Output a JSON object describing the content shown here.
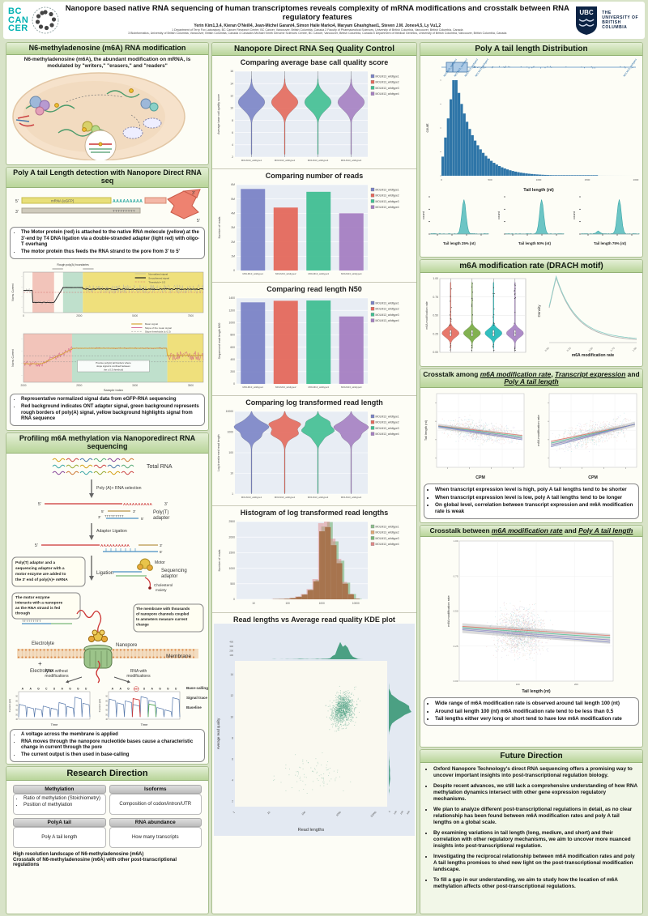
{
  "header": {
    "logo_bc": [
      "BC",
      "CAN",
      "CER"
    ],
    "title": "Nanopore based native RNA sequencing of human transcriptomes reveals complexity of mRNA modifications and crosstalk between RNA regulatory features",
    "authors": "Yerin Kim1,3,4, Kieran O'Neill4, Jean-Michel Garant4, Simon Haile Marko4, Maryam Ghashghaei1, Steven J.M. Jones4,5, Ly Vu1,2",
    "affil1": "1 Department of Terry Fox Laboratory, BC Cancer Research Centre, BC Cancer, Vancouver, British Columbia, Canada 2 Faculty of Pharmaceutical Sciences, University of British Columbia, Vancouver, British Columbia, Canada",
    "affil2": "3 Bioinformatics, University of British Columbia, Vancouver, British Columbia, Canada 4 Canada's Michael Smith Genome Sciences Centre, BC Cancer, Vancouver, British Columbia, Canada 5 Department of Medical Genetics, University of British Columbia, Vancouver, British Columbia, Canada",
    "ubc_abbr": "UBC",
    "ubc_lines": [
      "THE",
      "UNIVERSITY OF",
      "BRITISH",
      "COLUMBIA"
    ]
  },
  "samples": [
    "MOLM13_wildtype1",
    "MOLM13_wildtype2",
    "MOLM13_wildtype3",
    "MOLM13_wildtype4"
  ],
  "colors": {
    "s1": "#7b84c6",
    "s2": "#e4695c",
    "s3": "#41bf92",
    "s4": "#a57fc2",
    "accent_green": "#b9d59a",
    "polya_blue": "#2e75a8",
    "teal": "#63c3c3",
    "kde_green": "#4ba083"
  },
  "left": {
    "s1": {
      "title": "N6-methyladenosine (m6A) RNA modification",
      "desc": "N6-methyladenosine (m6A), the abundant modification on mRNA, is modulated by \"writers,\" \"erasers,\" and \"readers\""
    },
    "s2": {
      "title": "Poly A tail Length detection with Nanopore Direct RNA seq",
      "diagram": {
        "five": "5'",
        "three": "3'",
        "mrna": "mRNA (eGFP)",
        "polya": "AAAAAAAAA",
        "polyt": "TTTTTTTTT",
        "three2": "3'",
        "five2": "5'"
      },
      "bullets1": [
        "The Motor protein (red) is attached to the native RNA molecule (yellow) at the 3'-end by T4 DNA ligation via a double-stranded adapter (light red) with oligo-T overhang",
        "The motor protein thus feeds the RNA strand to the pore from 3' to 5'"
      ],
      "bullets2": [
        "Representative normalized signal data from eGFP-RNA sequencing",
        "Red background indicates ONT adapter signal, green background represents rough borders of poly(A) signal, yellow background highlights signal from RNA sequence"
      ]
    },
    "s3": {
      "title": "Profiling m6A methylation via Nanoporedirect RNA sequencing",
      "steps": {
        "total_rna": "Total RNA",
        "sel": "Poly (A)+ RNA selection",
        "five": "5'",
        "three": "3'",
        "polya": "AAAAAAAAAA",
        "polyt": "TTTTTTTTT",
        "polyt_adapter1": "Poly(T)",
        "polyt_adapter2": "adapter",
        "adaptor_ligation": "Adaptor Ligation",
        "ligation": "Ligation",
        "motor": "Motor",
        "seq_adapter1": "Sequencing",
        "seq_adapter2": "adaptor",
        "chol1": "Cholesterol",
        "chol2": "moiety",
        "callout1_lines": [
          "Poly(T) adaptor and a",
          "sequencing adaptor with a",
          "motor enzyme are added to",
          "the 3' end of poly(A)+ mRNA"
        ],
        "callout2_lines": [
          "The motor enzyme",
          "interacts with a nanopore",
          "as the RNA strand is fed",
          "through"
        ],
        "callout3_lines": [
          "The membrane with thousands",
          "of nanopore channels coupled",
          "to ammeters measure current",
          "change"
        ],
        "electrolyte": "Electrolyte",
        "minus": "−",
        "plus": "+",
        "nanopore": "Nanopore",
        "membrane": "Membrane",
        "rna_wo1": "RNA without",
        "rna_wo2": "modifications",
        "rna_w1": "RNA with",
        "rna_w2": "modifications"
      },
      "bullets": [
        "A voltage across the membrane is applied",
        "RNA moves through the nanopore nucleotide bases cause a characteristic change in current through the pore",
        "The current output is then used in base-calling"
      ]
    },
    "s4": {
      "title": "Research Direction",
      "boxes": [
        {
          "h": "Methylation",
          "items": [
            "Ratio of methylation (Stoichiometry)",
            "Position of methylation"
          ]
        },
        {
          "h": "Isoforms",
          "items": [
            "Composition of codon/intron/UTR"
          ]
        },
        {
          "h": "PolyA tail",
          "items": [
            "Poly A tail length"
          ]
        },
        {
          "h": "RNA abundance",
          "items": [
            "How many transcripts"
          ]
        }
      ],
      "bullets": [
        "High resolution landscape of N6-methyladenosine (m6A)",
        "Crosstalk of N6-methyladenosine (m6A) with other post-transcriptional regulations"
      ]
    }
  },
  "middle": {
    "title": "Nanopore Direct RNA Seq Quality Control"
  },
  "right": {
    "s1": {
      "title": "Poly A tail length Distribution"
    },
    "s2": {
      "title": "m6A modification rate (DRACH motif)"
    },
    "s3": {
      "parts": [
        "Crosstalk among ",
        "m6A modification rate",
        ", ",
        "Transcript expression",
        " and ",
        "Poly A tail length"
      ],
      "bullets": [
        "When transcript expression level is high, poly A tail lengths tend to be shorter",
        "When transcript expression level is low, poly A tail lengths tend to be longer",
        "On global level, correlation between transcript expression and m6A modification rate is weak"
      ]
    },
    "s4": {
      "parts": [
        "Crosstalk between ",
        "m6A modification rate",
        " and ",
        "Poly A tail length"
      ],
      "bullets": [
        "Wide range of m6A modification rate is observed around tail length 100 (nt)",
        "Around tail length 100 (nt) m6A modification rate tend to be less than 0.5",
        "Tail lengths either very long or short tend to have low m6A modification rate"
      ]
    },
    "s5": {
      "title": "Future Direction",
      "bullets": [
        "Oxford Nanopore Technology's direct RNA sequencing offers a promising way to uncover important insights into post-transcriptional regulation biology.",
        "Despite recent advances, we still lack a comprehensive understanding of how RNA methylation dynamics intersect with other gene expression regulatory mechanisms.",
        "We plan to analyze different post-transcriptional regulations in detail, as no clear relationship has been found between m6A modification rates and poly A tail lengths on a global scale.",
        "By examining variations in tail length (long, medium, and short) and their correlation with other regulatory mechanisms, we aim to uncover more nuanced insights into post-transcriptional regulation.",
        "Investigating the reciprocal relationship between m6A modification rates and poly A tail lengths promises to shed new light on the post-transcriptional modification landscape.",
        "To fill a gap in our understanding, we aim to study how the location of m6A methylation affects other post-transcriptional regulations."
      ]
    }
  },
  "chart_data": [
    {
      "id": "qc_quality",
      "type": "violin",
      "title": "Comparing average base call quality score",
      "ylabel": "Average base call quality score",
      "categories": [
        "MOLM13_wildtype1",
        "MOLM13_wildtype2",
        "MOLM13_wildtype3",
        "MOLM13_wildtype4"
      ],
      "legend": [
        "MOLM13_wildtype1",
        "MOLM13_wildtype2",
        "MOLM13_wildtype3",
        "MOLM13_wildtype4"
      ],
      "colors": [
        "#7b84c6",
        "#e4695c",
        "#41bf92",
        "#a57fc2"
      ],
      "yticks": [
        "2",
        "4",
        "6",
        "8",
        "10",
        "12",
        "14",
        "16"
      ],
      "ylim": [
        0,
        17
      ],
      "center_value": 11,
      "mu": 0.36,
      "sigma": 0.09,
      "capTop": 0.08,
      "tail": 0.97,
      "seed": 5
    },
    {
      "id": "qc_reads",
      "type": "bar",
      "title": "Comparing number of reads",
      "ylabel": "Number of reads",
      "categories": [
        "MOLM13_wildtype1",
        "MOLM13_wildtype2",
        "MOLM13_wildtype3",
        "MOLM13_wildtype4"
      ],
      "legend": [
        "MOLM13_wildtype1",
        "MOLM13_wildtype2",
        "MOLM13_wildtype3",
        "MOLM13_wildtype4"
      ],
      "colors": [
        "#7b84c6",
        "#e4695c",
        "#41bf92",
        "#a57fc2"
      ],
      "values": [
        5.7,
        4.4,
        5.5,
        4.0
      ],
      "ymax": 6,
      "yticks": [
        "0",
        "1M",
        "2M",
        "3M",
        "4M",
        "5M",
        "6M"
      ]
    },
    {
      "id": "qc_n50",
      "type": "bar",
      "title": "Comparing read length N50",
      "ylabel": "Sequenced read length N50",
      "categories": [
        "MOLM13_wildtype1",
        "MOLM13_wildtype2",
        "MOLM13_wildtype3",
        "MOLM13_wildtype4"
      ],
      "legend": [
        "MOLM13_wildtype1",
        "MOLM13_wildtype2",
        "MOLM13_wildtype3",
        "MOLM13_wildtype4"
      ],
      "colors": [
        "#7b84c6",
        "#e4695c",
        "#41bf92",
        "#a57fc2"
      ],
      "values": [
        1330,
        1355,
        1360,
        1100
      ],
      "ymax": 1400,
      "yticks": [
        "0",
        "200",
        "400",
        "600",
        "800",
        "1000",
        "1200",
        "1400"
      ]
    },
    {
      "id": "qc_loglen",
      "type": "violin",
      "title": "Comparing log transformed read length",
      "ylabel": "Log-transformed read length",
      "categories": [
        "MOLM13_wildtype1",
        "MOLM13_wildtype2",
        "MOLM13_wildtype3",
        "MOLM13_wildtype4"
      ],
      "legend": [
        "MOLM13_wildtype1",
        "MOLM13_wildtype2",
        "MOLM13_wildtype3",
        "MOLM13_wildtype4"
      ],
      "colors": [
        "#7b84c6",
        "#e4695c",
        "#41bf92",
        "#a57fc2"
      ],
      "yticks": [
        "1",
        "10",
        "100",
        "1000",
        "10000"
      ],
      "log": true,
      "center_value": 1000,
      "mu": 0.24,
      "sigma": 0.08,
      "capTop": 0.03,
      "tail": 0.99,
      "wig": true,
      "bumps": [
        {
          "a": 0.55,
          "mu": 0.14,
          "s": 0.05
        }
      ],
      "seed": 6
    },
    {
      "id": "qc_hist",
      "type": "histogram",
      "title": "Histogram of log transformed read lengths",
      "ylabel": "Number of reads",
      "xticks": [
        "10",
        "100",
        "1000",
        "10000"
      ],
      "yticks": [
        "0",
        "500",
        "1000",
        "1500",
        "2000",
        "2500"
      ],
      "ymax": 2800,
      "legend": [
        "MOLM13_wildtype1",
        "MOLM13_wildtype2",
        "MOLM13_wildtype3",
        "MOLM13_wildtype4"
      ],
      "legend_colors": [
        "#8fbf8f",
        "#e0a878",
        "#79b879",
        "#e08888"
      ],
      "bins_log10": [
        0.8,
        0.97,
        1.14,
        1.31,
        1.48,
        1.65,
        1.82,
        1.99,
        2.16,
        2.33,
        2.5,
        2.67,
        2.84,
        3.01,
        3.18,
        3.35,
        3.52,
        3.69,
        3.86,
        4.03
      ],
      "counts": [
        2,
        2,
        3,
        4,
        6,
        9,
        14,
        22,
        45,
        90,
        170,
        330,
        650,
        2450,
        2600,
        1950,
        1300,
        560,
        180,
        20
      ]
    },
    {
      "id": "qc_kde",
      "type": "scatter-kde",
      "title": "Read lengths vs Average read quality KDE plot",
      "xlabel": "Read lengths",
      "ylabel": "Average read quality",
      "xticks": [
        "1",
        "10",
        "100",
        "1000",
        "10000"
      ],
      "yticks": [
        "2",
        "4",
        "6",
        "8",
        "10",
        "12",
        "14"
      ],
      "top_ticks": [
        "100",
        "200",
        "300",
        "400"
      ],
      "right_ticks": [
        "0",
        "100",
        "200",
        "300"
      ],
      "cluster": {
        "x_log10_mean": 3.05,
        "x_sd": 0.32,
        "y_mean": 10.7,
        "y_sd": 1.5,
        "n": 1300
      },
      "seed": 33
    },
    {
      "id": "polya_dist",
      "type": "histogram-box",
      "xlabel": "Tail length (nt)",
      "ylabel": "count",
      "xticks": [
        "0",
        "500",
        "1000",
        "1500",
        "2000"
      ],
      "peak_tail_nt": 90,
      "seed": 99,
      "rot_labels": [
        "MOLM13_wildtype1",
        "MOLM13_wildtype2",
        "MOLM13_wildtype3",
        "MOLM13_wildtype4"
      ]
    },
    {
      "id": "tail25",
      "type": "density",
      "xlabel": "Tail length 25% (nt)",
      "ylabel": "count",
      "peak": 0.58,
      "seed": 12
    },
    {
      "id": "tail50",
      "type": "density",
      "xlabel": "Tail length 50% (nt)",
      "ylabel": "count",
      "peak": 0.62,
      "seed": 13
    },
    {
      "id": "tail75",
      "type": "density",
      "xlabel": "Tail length 75% (nt)",
      "ylabel": "count",
      "peak": 0.66,
      "seed": 14,
      "bump": 0.3
    },
    {
      "id": "drach_violin",
      "type": "violin",
      "style": "gg",
      "ylabel": "m6A modification rate",
      "categories": [
        "1",
        "2",
        "3",
        "4"
      ],
      "colors": [
        "#e4695c",
        "#74a83e",
        "#1cb8b8",
        "#a57fc2"
      ],
      "yticks": [
        "0.00",
        "0.25",
        "0.50",
        "0.75",
        "1.00"
      ],
      "center_value": 0.25,
      "mu": 0.74,
      "sigma": 0.055,
      "capTop": 0.04,
      "tail": 0.96,
      "dots": true,
      "seed": 8
    },
    {
      "id": "drach_density",
      "type": "density-line",
      "ylabel": "Density",
      "xlabel": "m6A modification rate",
      "xticks": [
        "0.00",
        "0.25",
        "0.50",
        "0.75",
        "1.00"
      ]
    },
    {
      "id": "ct_tail_cpm",
      "type": "scatter",
      "xlabel": "CPM",
      "ylabel": "Tail length (nt)",
      "trend": "down",
      "cy": 0.52,
      "slope": 0.16,
      "ysd": 0.14,
      "n": 900,
      "seed": 44
    },
    {
      "id": "ct_m6a_cpm",
      "type": "scatter",
      "xlabel": "CPM",
      "ylabel": "m6A modification rate",
      "trend": "up",
      "cy": 0.55,
      "slope": -0.28,
      "ysd": 0.15,
      "n": 900,
      "seed": 55
    },
    {
      "id": "ct_m6a_tail",
      "type": "scatter",
      "xlabel": "Tail length (nt)",
      "ylabel": "m6A modification rate",
      "xticks": [
        "100",
        "200"
      ],
      "xtf": [
        0.38,
        0.76
      ],
      "yticks": [
        "0.00",
        "0.25",
        "0.50",
        "0.75",
        "1.00"
      ],
      "trend": "down",
      "cy": 0.66,
      "slope": 0.08,
      "ysd": 0.16,
      "n": 1600,
      "xdist": "gauss",
      "seed": 66
    },
    {
      "id": "sig_rough",
      "type": "line-signal",
      "ylabel": "Norm. Current",
      "xticks": [
        "0",
        "2500",
        "5000",
        "7500"
      ],
      "legend": [
        "Normalized signal",
        "Smoothened signal",
        "Threshold = 0.3"
      ],
      "annotation": "Rough poly(A) boundaries",
      "variant": 1,
      "seed": 11
    },
    {
      "id": "sig_precise",
      "type": "line-signal",
      "ylabel": "Norm. Current",
      "xlabel": "Sample index",
      "xticks": [
        "2000",
        "2500",
        "3000",
        "3500"
      ],
      "legend": [
        "Mean signal",
        "Slope of the mean signal",
        "Slope thresholds (± 0.3)"
      ],
      "ann_lines": [
        "Precise poly(A) tail borders where",
        "slope signal is confined between",
        "the ± 0.3 threshold"
      ],
      "variant": 2,
      "seed": 22
    },
    {
      "id": "cur1",
      "type": "line-current",
      "ylabel": "Current (pA)",
      "xlabel": "Time",
      "bases": "A A G C U A G G U",
      "seed": 77
    },
    {
      "id": "cur2",
      "type": "line-current",
      "ylabel": "Current (pA)",
      "xlabel": "Time",
      "bases": "A A G m6A U A G G U",
      "mark": true,
      "seed": 88,
      "labels": [
        "Base-calling",
        "Signal trace",
        "Baseline"
      ]
    }
  ]
}
